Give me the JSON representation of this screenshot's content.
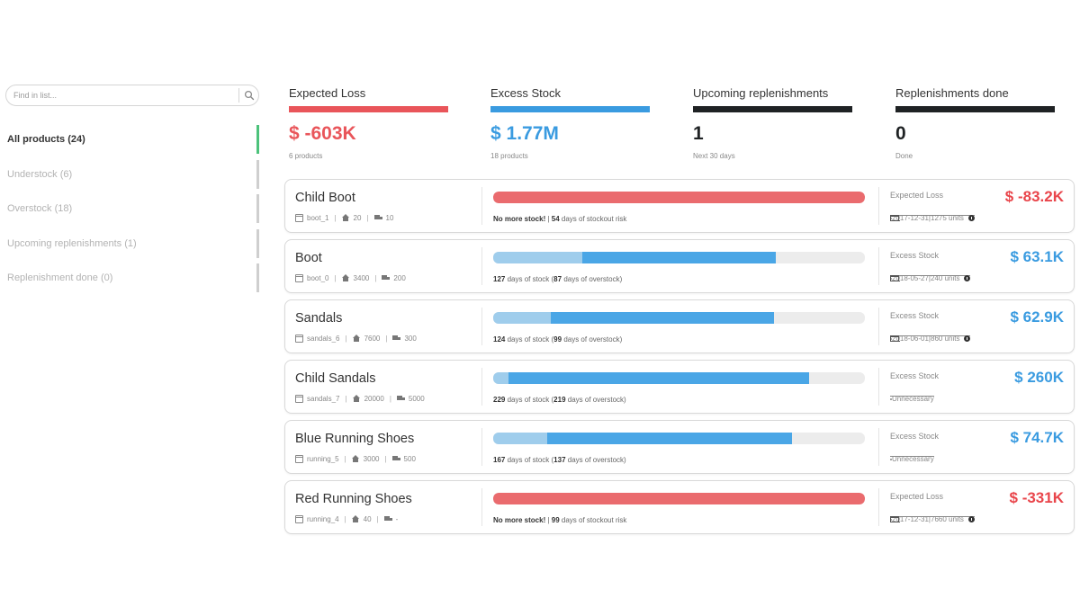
{
  "sidebar": {
    "search_placeholder": "Find in list...",
    "items": [
      {
        "label": "All products (24)",
        "active": true
      },
      {
        "label": "Understock (6)",
        "active": false
      },
      {
        "label": "Overstock (18)",
        "active": false
      },
      {
        "label": "Upcoming replenishments (1)",
        "active": false
      },
      {
        "label": "Replenishment done (0)",
        "active": false
      }
    ]
  },
  "kpis": [
    {
      "title": "Expected Loss",
      "value": "$ -603K",
      "sub": "6 products",
      "color": "#e9555a"
    },
    {
      "title": "Excess Stock",
      "value": "$ 1.77M",
      "sub": "18 products",
      "color": "#3a9be0"
    },
    {
      "title": "Upcoming replenishments",
      "value": "1",
      "sub": "Next 30 days",
      "color": "#1f2224"
    },
    {
      "title": "Replenishments done",
      "value": "0",
      "sub": "Done",
      "color": "#1f2224"
    }
  ],
  "colors": {
    "loss": "#ea6b6e",
    "loss_text": "#e9454b",
    "excess_text": "#3a9be0",
    "bar_light": "#9fcdec",
    "bar_dark": "#4aa6e6",
    "track": "#ececec"
  },
  "products": [
    {
      "name": "Child Boot",
      "sku": "boot_1",
      "stores": "20",
      "trucks": "10",
      "kind": "loss",
      "bar": {
        "full": 1.0
      },
      "stock_bold": "No more stock!",
      "stock_days": "54",
      "stock_rest": "days of stockout risk",
      "right_type": "Expected Loss",
      "right_value": "$ -83.2K",
      "date": "2017-12-31",
      "units": "1275 units",
      "show_info": true
    },
    {
      "name": "Boot",
      "sku": "boot_0",
      "stores": "3400",
      "trucks": "200",
      "kind": "excess",
      "bar": {
        "light_end": 0.24,
        "dark_end": 0.76
      },
      "stock_days": "127",
      "stock_mid": "days of stock (",
      "stock_over": "87",
      "stock_end": "days of overstock)",
      "right_type": "Excess Stock",
      "right_value": "$ 63.1K",
      "date": "2018-05-27",
      "units": "240 units",
      "show_info": true
    },
    {
      "name": "Sandals",
      "sku": "sandals_6",
      "stores": "7600",
      "trucks": "300",
      "kind": "excess",
      "bar": {
        "light_end": 0.155,
        "dark_end": 0.755
      },
      "stock_days": "124",
      "stock_mid": "days of stock (",
      "stock_over": "99",
      "stock_end": "days of overstock)",
      "right_type": "Excess Stock",
      "right_value": "$ 62.9K",
      "date": "2018-06-01",
      "units": "860 units",
      "show_info": true
    },
    {
      "name": "Child Sandals",
      "sku": "sandals_7",
      "stores": "20000",
      "trucks": "5000",
      "kind": "excess",
      "bar": {
        "light_end": 0.04,
        "dark_end": 0.85
      },
      "stock_days": "229",
      "stock_mid": "days of stock (",
      "stock_over": "219",
      "stock_end": "days of overstock)",
      "right_type": "Excess Stock",
      "right_value": "$ 260K",
      "date": "Unnecessary",
      "units": "",
      "show_info": false
    },
    {
      "name": "Blue Running Shoes",
      "sku": "running_5",
      "stores": "3000",
      "trucks": "500",
      "kind": "excess",
      "bar": {
        "light_end": 0.145,
        "dark_end": 0.805
      },
      "stock_days": "167",
      "stock_mid": "days of stock (",
      "stock_over": "137",
      "stock_end": "days of overstock)",
      "right_type": "Excess Stock",
      "right_value": "$ 74.7K",
      "date": "Unnecessary",
      "units": "",
      "show_info": false
    },
    {
      "name": "Red Running Shoes",
      "sku": "running_4",
      "stores": "40",
      "trucks": "-",
      "kind": "loss",
      "bar": {
        "full": 1.0
      },
      "stock_bold": "No more stock!",
      "stock_days": "99",
      "stock_rest": "days of stockout risk",
      "right_type": "Expected Loss",
      "right_value": "$ -331K",
      "date": "2017-12-31",
      "units": "7660 units",
      "show_info": true
    }
  ]
}
